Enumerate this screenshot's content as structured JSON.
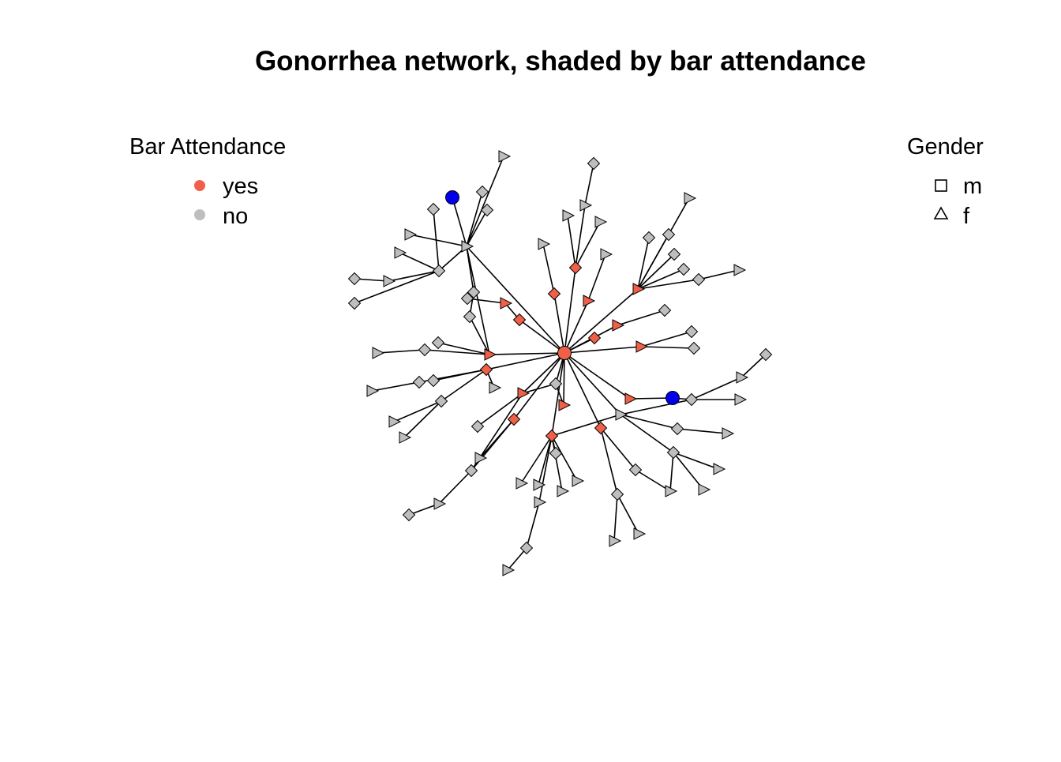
{
  "title": "Gonorrhea network, shaded by bar attendance",
  "legend_bar": {
    "title": "Bar Attendance",
    "items": [
      {
        "label": "yes",
        "color": "#f06048"
      },
      {
        "label": "no",
        "color": "#bebebe"
      }
    ]
  },
  "legend_gender": {
    "title": "Gender",
    "items": [
      {
        "label": "m",
        "shape": "square"
      },
      {
        "label": "f",
        "shape": "triangle"
      }
    ]
  },
  "colors": {
    "yes": "#f06048",
    "no": "#bebebe",
    "highlight": "#0000ee",
    "edge": "#000000"
  }
}
